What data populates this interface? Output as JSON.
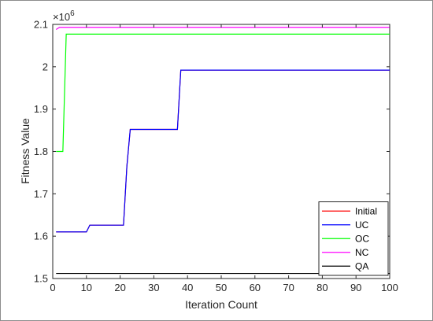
{
  "chart_data": {
    "type": "line",
    "title": "",
    "xlabel": "Iteration Count",
    "ylabel": "Fitness Value",
    "exponent_label": "×10",
    "exponent_power": "6",
    "xlim": [
      0,
      100
    ],
    "ylim": [
      1.5,
      2.1
    ],
    "xticks": [
      0,
      10,
      20,
      30,
      40,
      50,
      60,
      70,
      80,
      90,
      100
    ],
    "yticks": [
      1.5,
      1.6,
      1.7,
      1.8,
      1.9,
      2.0,
      2.1
    ],
    "ytick_labels": [
      "1.5",
      "1.6",
      "1.7",
      "1.8",
      "1.9",
      "2",
      "2.1"
    ],
    "grid": false,
    "legend_position": "bottom-right",
    "series": [
      {
        "name": "Initial",
        "color": "#ff0000",
        "points": [
          [
            1,
            1.61
          ],
          [
            10,
            1.61
          ],
          [
            11,
            1.626
          ],
          [
            21,
            1.626
          ],
          [
            22,
            1.765
          ],
          [
            23,
            1.852
          ],
          [
            37,
            1.852
          ],
          [
            38,
            1.992
          ],
          [
            100,
            1.992
          ]
        ]
      },
      {
        "name": "UC",
        "color": "#0000ff",
        "points": [
          [
            1,
            1.61
          ],
          [
            10,
            1.61
          ],
          [
            11,
            1.626
          ],
          [
            21,
            1.626
          ],
          [
            22,
            1.765
          ],
          [
            23,
            1.852
          ],
          [
            37,
            1.852
          ],
          [
            38,
            1.992
          ],
          [
            100,
            1.992
          ]
        ]
      },
      {
        "name": "OC",
        "color": "#00ff00",
        "points": [
          [
            1,
            1.8
          ],
          [
            3,
            1.8
          ],
          [
            4,
            2.077
          ],
          [
            100,
            2.077
          ]
        ]
      },
      {
        "name": "NC",
        "color": "#ff00ff",
        "points": [
          [
            1,
            2.088
          ],
          [
            2,
            2.093
          ],
          [
            100,
            2.093
          ]
        ]
      },
      {
        "name": "QA",
        "color": "#000000",
        "points": [
          [
            1,
            1.512
          ],
          [
            100,
            1.512
          ]
        ]
      }
    ]
  }
}
